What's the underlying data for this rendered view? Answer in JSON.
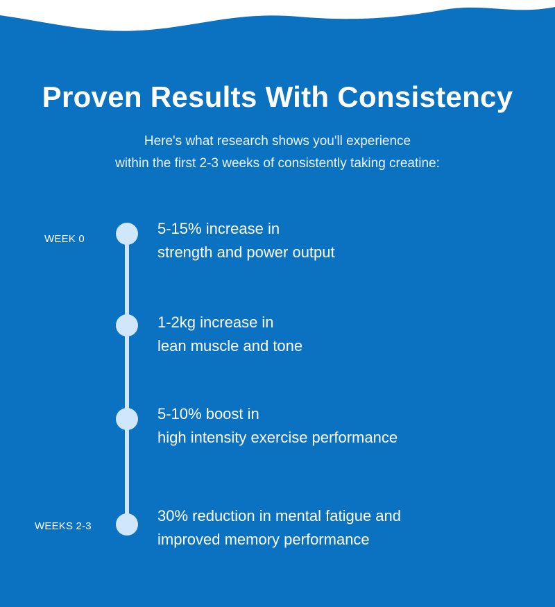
{
  "header": {
    "title": "Proven Results With Consistency",
    "subtitle_line1": "Here's what research shows you'll experience",
    "subtitle_line2": "within the first 2-3 weeks of consistently taking creatine:"
  },
  "timeline": {
    "start_label": "WEEK 0",
    "end_label": "WEEKS 2-3",
    "items": [
      {
        "line1": "5-15% increase in",
        "line2": "strength and power output"
      },
      {
        "line1": "1-2kg increase in",
        "line2": "lean muscle and tone"
      },
      {
        "line1": "5-10% boost in",
        "line2": "high intensity exercise performance"
      },
      {
        "line1": "30% reduction in mental fatigue and",
        "line2": "improved memory performance"
      }
    ]
  },
  "colors": {
    "background": "#0a72c0",
    "timeline": "#cfe6fb",
    "text": "#ffffff"
  }
}
